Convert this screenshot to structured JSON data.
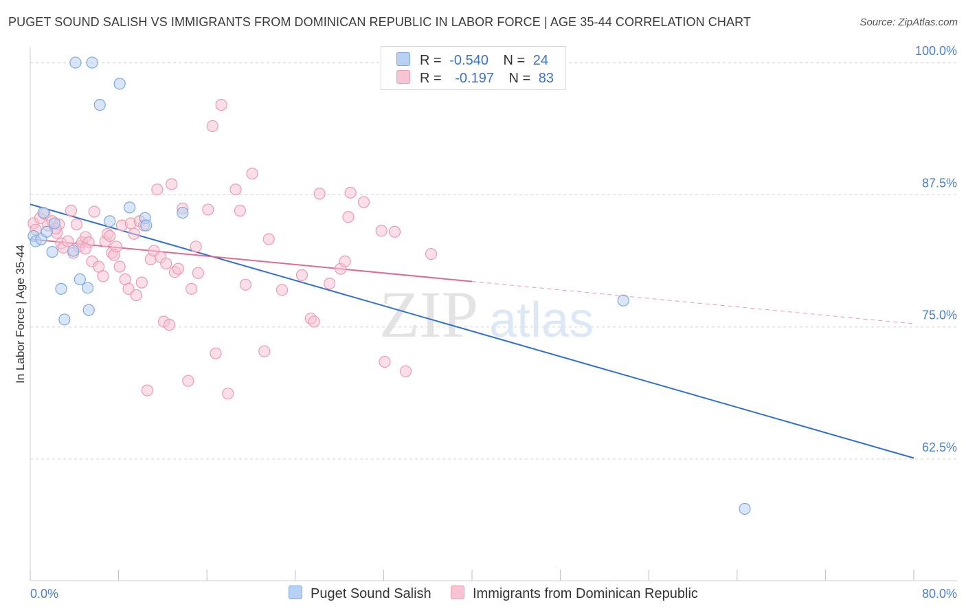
{
  "header": {
    "title": "PUGET SOUND SALISH VS IMMIGRANTS FROM DOMINICAN REPUBLIC IN LABOR FORCE | AGE 35-44 CORRELATION CHART",
    "source": "Source: ZipAtlas.com"
  },
  "watermark": {
    "zip": "ZIP",
    "atlas": "atlas"
  },
  "legend": {
    "rows": [
      {
        "r_label": "R =",
        "r_value": "-0.540",
        "n_label": "N =",
        "n_value": "24"
      },
      {
        "r_label": "R =",
        "r_value": "-0.197",
        "n_label": "N =",
        "n_value": "83"
      }
    ]
  },
  "bottom_legend": [
    "Puget Sound Salish",
    "Immigrants from Dominican Republic"
  ],
  "colors": {
    "blue_fill": "#b8d1f2",
    "blue_stroke": "#7ea9e0",
    "blue_line": "#2f6fcf",
    "pink_fill": "#f7c4d3",
    "pink_stroke": "#ec9ab3",
    "pink_line": "#e06a93",
    "grid": "#d5d5d5",
    "axis_label": "#4a7fc7"
  },
  "chart_data": {
    "type": "scatter",
    "title": "PUGET SOUND SALISH VS IMMIGRANTS FROM DOMINICAN REPUBLIC IN LABOR FORCE | AGE 35-44 CORRELATION CHART",
    "xlabel": "",
    "ylabel": "In Labor Force | Age 35-44",
    "xlim": [
      0,
      80
    ],
    "ylim": [
      51,
      101.5
    ],
    "x_tick_labels": [
      "0.0%",
      "80.0%"
    ],
    "y_ticks": [
      62.5,
      75.0,
      87.5,
      100.0
    ],
    "y_tick_labels": [
      "62.5%",
      "75.0%",
      "87.5%",
      "100.0%"
    ],
    "grid": true,
    "legend_position": "top-center",
    "series": [
      {
        "name": "Puget Sound Salish",
        "color": "#b8d1f2",
        "points": [
          [
            0.3,
            83.6
          ],
          [
            0.5,
            83.1
          ],
          [
            1.0,
            83.3
          ],
          [
            1.2,
            85.8
          ],
          [
            1.5,
            84.0
          ],
          [
            2.2,
            84.8
          ],
          [
            2.0,
            82.1
          ],
          [
            2.8,
            78.6
          ],
          [
            3.1,
            75.7
          ],
          [
            3.9,
            82.2
          ],
          [
            4.5,
            79.5
          ],
          [
            5.2,
            78.7
          ],
          [
            5.3,
            76.6
          ],
          [
            4.1,
            100.0
          ],
          [
            5.6,
            100.0
          ],
          [
            6.3,
            96.0
          ],
          [
            7.2,
            85.0
          ],
          [
            8.1,
            98.0
          ],
          [
            9.0,
            86.3
          ],
          [
            10.4,
            85.3
          ],
          [
            13.8,
            85.8
          ],
          [
            10.5,
            84.6
          ],
          [
            53.7,
            77.5
          ],
          [
            64.7,
            57.8
          ]
        ],
        "trend": {
          "x": [
            0,
            80
          ],
          "y": [
            86.6,
            62.6
          ],
          "style": "solid"
        }
      },
      {
        "name": "Immigrants from Dominican Republic",
        "color": "#f7c4d3",
        "points": [
          [
            0.3,
            84.8
          ],
          [
            0.5,
            84.2
          ],
          [
            0.9,
            85.3
          ],
          [
            1.3,
            85.7
          ],
          [
            1.6,
            84.6
          ],
          [
            2.0,
            85.0
          ],
          [
            2.4,
            83.9
          ],
          [
            2.6,
            84.7
          ],
          [
            2.8,
            82.9
          ],
          [
            3.0,
            82.5
          ],
          [
            3.4,
            83.1
          ],
          [
            3.7,
            86.0
          ],
          [
            3.9,
            82.0
          ],
          [
            4.2,
            84.7
          ],
          [
            4.4,
            82.6
          ],
          [
            4.7,
            83.0
          ],
          [
            5.0,
            83.5
          ],
          [
            5.3,
            83.0
          ],
          [
            5.6,
            81.2
          ],
          [
            5.8,
            85.9
          ],
          [
            6.2,
            80.7
          ],
          [
            6.6,
            79.8
          ],
          [
            6.8,
            83.1
          ],
          [
            7.0,
            83.8
          ],
          [
            7.2,
            83.6
          ],
          [
            7.4,
            82.0
          ],
          [
            7.6,
            81.8
          ],
          [
            7.8,
            82.6
          ],
          [
            8.1,
            80.7
          ],
          [
            8.3,
            84.6
          ],
          [
            8.6,
            79.5
          ],
          [
            8.9,
            78.6
          ],
          [
            9.1,
            84.8
          ],
          [
            9.4,
            83.8
          ],
          [
            9.6,
            78.0
          ],
          [
            9.9,
            85.0
          ],
          [
            10.1,
            79.2
          ],
          [
            10.3,
            84.6
          ],
          [
            10.6,
            69.0
          ],
          [
            10.9,
            81.4
          ],
          [
            11.2,
            82.2
          ],
          [
            11.5,
            88.0
          ],
          [
            11.8,
            81.6
          ],
          [
            12.1,
            75.5
          ],
          [
            12.3,
            81.0
          ],
          [
            12.6,
            75.2
          ],
          [
            12.8,
            88.5
          ],
          [
            13.1,
            80.2
          ],
          [
            13.4,
            80.5
          ],
          [
            13.8,
            86.2
          ],
          [
            14.3,
            69.9
          ],
          [
            14.6,
            78.6
          ],
          [
            15.0,
            82.6
          ],
          [
            15.2,
            80.1
          ],
          [
            16.1,
            86.1
          ],
          [
            16.5,
            94.0
          ],
          [
            16.8,
            72.5
          ],
          [
            17.3,
            96.0
          ],
          [
            17.9,
            68.7
          ],
          [
            18.6,
            88.0
          ],
          [
            19.0,
            86.0
          ],
          [
            19.5,
            79.0
          ],
          [
            20.1,
            89.5
          ],
          [
            21.2,
            72.7
          ],
          [
            21.6,
            83.3
          ],
          [
            22.8,
            78.5
          ],
          [
            24.6,
            79.9
          ],
          [
            25.4,
            75.8
          ],
          [
            25.7,
            75.5
          ],
          [
            26.2,
            87.6
          ],
          [
            27.1,
            79.1
          ],
          [
            28.1,
            80.5
          ],
          [
            28.5,
            81.2
          ],
          [
            28.8,
            85.4
          ],
          [
            29.0,
            87.7
          ],
          [
            30.2,
            86.8
          ],
          [
            31.8,
            84.1
          ],
          [
            32.1,
            71.7
          ],
          [
            33.0,
            84.0
          ],
          [
            34.0,
            70.8
          ],
          [
            36.3,
            81.9
          ],
          [
            5.0,
            82.4
          ],
          [
            2.3,
            84.3
          ]
        ],
        "trend": {
          "x": [
            0,
            40,
            80
          ],
          "y": [
            83.3,
            79.3,
            75.3
          ],
          "solid_until": 40
        }
      }
    ]
  }
}
